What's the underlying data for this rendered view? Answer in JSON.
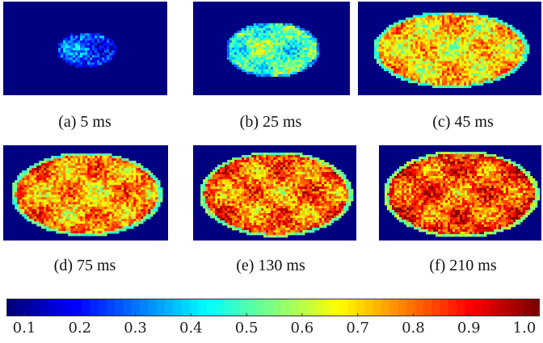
{
  "colors": {
    "background_field": "#000080",
    "colormap": [
      "#00007f",
      "#0000ff",
      "#007fff",
      "#00ffff",
      "#7fff7f",
      "#ffff00",
      "#ff7f00",
      "#ff0000",
      "#7f0000"
    ]
  },
  "panels": [
    {
      "id": "a",
      "caption": "(a) 5 ms",
      "time_ms": 5,
      "level": 0.2,
      "extent": 0.36
    },
    {
      "id": "b",
      "caption": "(b) 25 ms",
      "time_ms": 25,
      "level": 0.45,
      "extent": 0.6
    },
    {
      "id": "c",
      "caption": "(c) 45 ms",
      "time_ms": 45,
      "level": 0.72,
      "extent": 0.85
    },
    {
      "id": "d",
      "caption": "(d) 75 ms",
      "time_ms": 75,
      "level": 0.78,
      "extent": 0.92
    },
    {
      "id": "e",
      "caption": "(e) 130 ms",
      "time_ms": 130,
      "level": 0.82,
      "extent": 0.94
    },
    {
      "id": "f",
      "caption": "(f) 210 ms",
      "time_ms": 210,
      "level": 0.86,
      "extent": 0.96
    }
  ],
  "colorbar": {
    "ticks": [
      "0.1",
      "0.2",
      "0.3",
      "0.4",
      "0.5",
      "0.6",
      "0.7",
      "0.8",
      "0.9",
      "1.0"
    ]
  }
}
